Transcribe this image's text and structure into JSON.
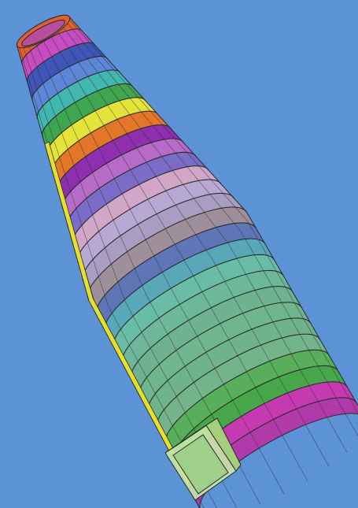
{
  "scene": {
    "background": "#5b93d6",
    "outline": "#2a2a2a",
    "ring_colors": [
      "#e0612e",
      "#c64cc0",
      "#3f56b8",
      "#5c86d6",
      "#42b7b0",
      "#3ea64e",
      "#e4e33a",
      "#e37628",
      "#8e2fb0",
      "#b66bc9",
      "#7a6cc7",
      "#d2a6c7",
      "#b7a9d3",
      "#a79ec1",
      "#9e8f9a",
      "#5f76b6",
      "#58a8ba",
      "#69bda6",
      "#6db79a",
      "#6eb290",
      "#6fb58e",
      "#6fb38b",
      "#74b48a",
      "#58ae5b",
      "#47a64a",
      "#c53ab1",
      "#b13aaa"
    ],
    "side_strip_color": "#e6df2d",
    "box_color": "#c8e8a8"
  }
}
